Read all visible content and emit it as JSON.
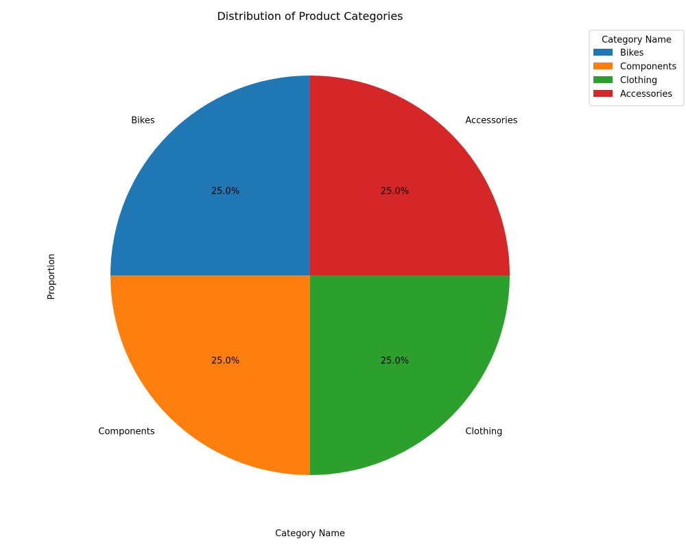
{
  "chart_data": {
    "type": "pie",
    "title": "Distribution of Product Categories",
    "xlabel": "Category Name",
    "ylabel": "Proportion",
    "categories": [
      "Bikes",
      "Components",
      "Clothing",
      "Accessories"
    ],
    "values": [
      25.0,
      25.0,
      25.0,
      25.0
    ],
    "percent_labels": [
      "25.0%",
      "25.0%",
      "25.0%",
      "25.0%"
    ],
    "colors": [
      "#1f77b4",
      "#ff7f0e",
      "#2ca02c",
      "#d62728"
    ],
    "start_angle_deg": 90,
    "direction": "counterclockwise",
    "legend": {
      "title": "Category Name",
      "placement": "top-right",
      "entries": [
        "Bikes",
        "Components",
        "Clothing",
        "Accessories"
      ]
    }
  }
}
